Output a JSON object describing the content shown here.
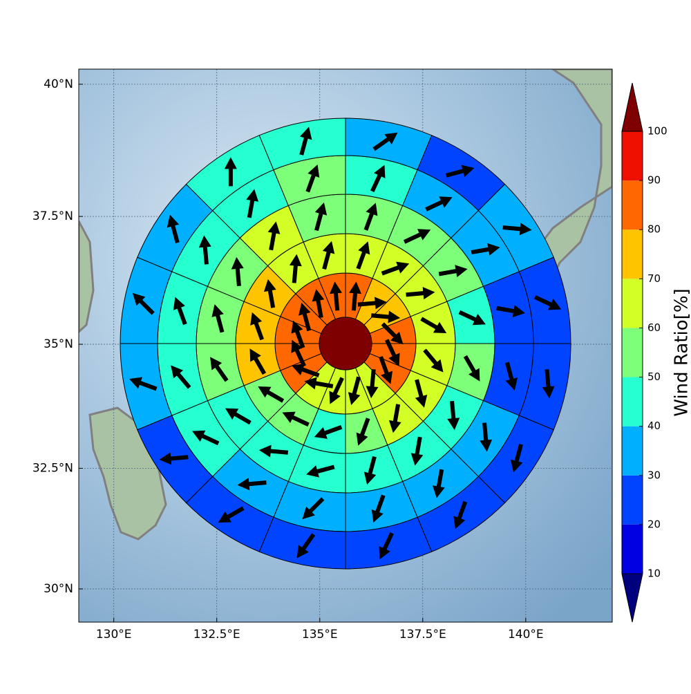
{
  "chart_data": {
    "type": "wind-rose-map",
    "xlim": [
      129.15,
      142.1
    ],
    "ylim": [
      29.3,
      40.28
    ],
    "xticks": [
      {
        "value": 130,
        "label": "130°E"
      },
      {
        "value": 132.5,
        "label": "132.5°E"
      },
      {
        "value": 135,
        "label": "135°E"
      },
      {
        "value": 137.5,
        "label": "137.5°E"
      },
      {
        "value": 140,
        "label": "140°E"
      }
    ],
    "yticks": [
      {
        "value": 30,
        "label": "30°N"
      },
      {
        "value": 32.5,
        "label": "32.5°N"
      },
      {
        "value": 35,
        "label": "35°N"
      },
      {
        "value": 37.5,
        "label": "37.5°N"
      },
      {
        "value": 40,
        "label": "40°N"
      }
    ],
    "grid": true,
    "center_value": 105,
    "rings": [
      {
        "values": [
          85,
          75,
          75,
          85,
          85,
          85,
          65,
          65,
          65,
          65,
          85,
          85,
          85,
          85,
          85,
          85
        ],
        "directions": [
          5,
          85,
          95,
          135,
          155,
          160,
          185,
          195,
          205,
          280,
          290,
          335,
          340,
          345,
          350,
          355
        ]
      },
      {
        "values": [
          65,
          65,
          65,
          65,
          65,
          65,
          65,
          55,
          45,
          55,
          55,
          75,
          75,
          75,
          65,
          65
        ],
        "directions": [
          20,
          70,
          85,
          120,
          140,
          165,
          190,
          200,
          250,
          295,
          300,
          330,
          340,
          350,
          5,
          15
        ]
      },
      {
        "values": [
          55,
          55,
          55,
          45,
          55,
          45,
          45,
          45,
          45,
          45,
          45,
          55,
          55,
          55,
          65,
          55
        ],
        "directions": [
          20,
          65,
          80,
          115,
          150,
          175,
          190,
          195,
          255,
          275,
          300,
          325,
          345,
          355,
          10,
          15
        ]
      },
      {
        "values": [
          45,
          35,
          35,
          25,
          25,
          35,
          35,
          35,
          35,
          35,
          45,
          45,
          45,
          45,
          45,
          55
        ],
        "directions": [
          25,
          65,
          80,
          100,
          165,
          175,
          190,
          200,
          225,
          265,
          295,
          320,
          340,
          355,
          10,
          20
        ]
      },
      {
        "values": [
          35,
          25,
          35,
          25,
          25,
          25,
          25,
          25,
          25,
          25,
          25,
          35,
          35,
          35,
          45,
          45
        ],
        "directions": [
          55,
          75,
          95,
          115,
          175,
          195,
          200,
          205,
          215,
          240,
          265,
          290,
          315,
          345,
          0,
          15
        ]
      }
    ],
    "colorbar": {
      "label": "Wind Ratio[%]",
      "ticks": [
        10,
        20,
        30,
        40,
        50,
        60,
        70,
        80,
        90,
        100
      ],
      "colors": [
        "#00007f",
        "#0000e3",
        "#0044ff",
        "#00b0ff",
        "#26ffd0",
        "#7dff7a",
        "#d2ff25",
        "#ffc400",
        "#ff6800",
        "#f01000",
        "#7f0000"
      ]
    }
  }
}
